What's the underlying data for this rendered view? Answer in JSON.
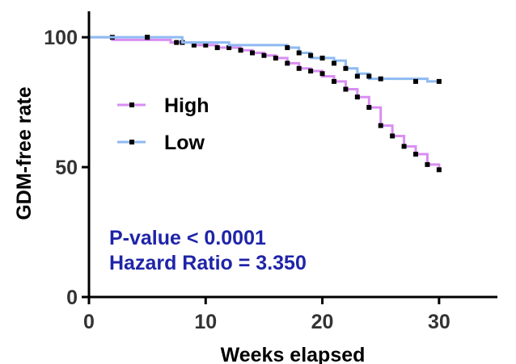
{
  "chart_data": {
    "type": "line",
    "subtype": "kaplan-meier-step",
    "title": "",
    "xlabel": "Weeks elapsed",
    "ylabel": "GDM-free rate",
    "xlim": [
      0,
      35
    ],
    "ylim": [
      0,
      110
    ],
    "x_ticks": [
      0,
      10,
      20,
      30
    ],
    "y_ticks": [
      0,
      50,
      100
    ],
    "grid": false,
    "legend_position": "center-left",
    "annotations": [
      "P-value < 0.0001",
      "Hazard Ratio = 3.350"
    ],
    "annotation_color": "#1f24a8",
    "series": [
      {
        "name": "High",
        "color": "#d98ef2",
        "steps": [
          [
            0,
            100
          ],
          [
            2,
            99
          ],
          [
            7,
            98
          ],
          [
            9,
            97
          ],
          [
            11,
            96
          ],
          [
            13,
            95
          ],
          [
            14,
            94
          ],
          [
            15,
            93
          ],
          [
            16,
            92
          ],
          [
            17,
            90
          ],
          [
            18,
            88
          ],
          [
            19,
            87
          ],
          [
            20,
            85
          ],
          [
            21,
            83
          ],
          [
            22,
            80
          ],
          [
            23,
            77
          ],
          [
            24,
            73
          ],
          [
            25,
            66
          ],
          [
            26,
            62
          ],
          [
            27,
            58
          ],
          [
            28,
            55
          ],
          [
            29,
            51
          ],
          [
            30,
            49
          ]
        ],
        "censored": [
          [
            2,
            100
          ],
          [
            5,
            100
          ],
          [
            7.5,
            98
          ],
          [
            8,
            98
          ],
          [
            9,
            97
          ],
          [
            10,
            97
          ],
          [
            11,
            96
          ],
          [
            12,
            96
          ],
          [
            13,
            95
          ],
          [
            14,
            94
          ],
          [
            15,
            93
          ],
          [
            16,
            92
          ],
          [
            17,
            90
          ],
          [
            18,
            88
          ],
          [
            19,
            87
          ],
          [
            20,
            86
          ],
          [
            21,
            83
          ],
          [
            22,
            80
          ],
          [
            23,
            77
          ],
          [
            24,
            73
          ],
          [
            25,
            66
          ],
          [
            26,
            62
          ],
          [
            27,
            58
          ],
          [
            28,
            55
          ],
          [
            29,
            51
          ],
          [
            30,
            49
          ]
        ]
      },
      {
        "name": "Low",
        "color": "#8ebaf2",
        "steps": [
          [
            0,
            100
          ],
          [
            8,
            98
          ],
          [
            12,
            97
          ],
          [
            17,
            96
          ],
          [
            18,
            94
          ],
          [
            19,
            92
          ],
          [
            21,
            91
          ],
          [
            22,
            88
          ],
          [
            23,
            86
          ],
          [
            24,
            84
          ],
          [
            29,
            83
          ],
          [
            30,
            82
          ]
        ],
        "censored": [
          [
            5,
            100
          ],
          [
            17,
            96
          ],
          [
            18,
            94
          ],
          [
            19,
            93
          ],
          [
            20,
            92
          ],
          [
            21,
            90
          ],
          [
            22,
            88
          ],
          [
            23,
            85
          ],
          [
            24,
            85
          ],
          [
            25,
            84
          ],
          [
            28,
            83
          ],
          [
            30,
            83
          ]
        ]
      }
    ]
  }
}
